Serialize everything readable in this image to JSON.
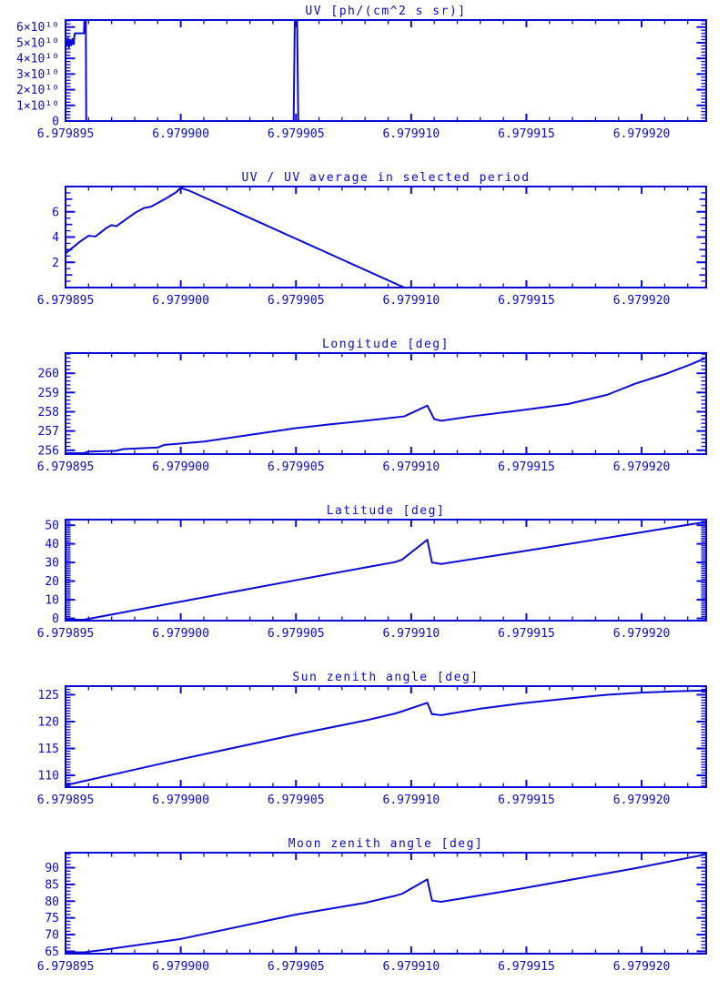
{
  "page": {
    "background": "#ffffff",
    "accent": "#0a0ad8"
  },
  "chart_data": [
    {
      "type": "line",
      "title": "UV [ph/(cm^2 s sr)]",
      "xlim": [
        6.979895,
        6.9799228
      ],
      "ylim": [
        0,
        64500000000.0
      ],
      "x_ticks": [
        {
          "v": 6.979895,
          "label": "6.979895"
        },
        {
          "v": 6.9799,
          "label": "6.979900"
        },
        {
          "v": 6.979905,
          "label": "6.979905"
        },
        {
          "v": 6.97991,
          "label": "6.979910"
        },
        {
          "v": 6.979915,
          "label": "6.979915"
        },
        {
          "v": 6.97992,
          "label": "6.979920"
        }
      ],
      "x_minor_step": 1e-06,
      "y_ticks": [
        {
          "v": 0,
          "label": "0"
        },
        {
          "v": 10000000000.0,
          "label": "1×10¹⁰"
        },
        {
          "v": 20000000000.0,
          "label": "2×10¹⁰"
        },
        {
          "v": 30000000000.0,
          "label": "3×10¹⁰"
        },
        {
          "v": 40000000000.0,
          "label": "4×10¹⁰"
        },
        {
          "v": 50000000000.0,
          "label": "5×10¹⁰"
        },
        {
          "v": 60000000000.0,
          "label": "6×10¹⁰"
        }
      ],
      "y_mid_ticks": [],
      "y_minor_step": 2000000000.0,
      "points": [
        [
          6.979895,
          50000000000.0
        ],
        [
          6.97989505,
          48000000000.0
        ],
        [
          6.9798951,
          53000000000.0
        ],
        [
          6.97989515,
          47000000000.0
        ],
        [
          6.9798952,
          52000000000.0
        ],
        [
          6.97989525,
          48500000000.0
        ],
        [
          6.9798953,
          52500000000.0
        ],
        [
          6.97989535,
          49000000000.0
        ],
        [
          6.9798954,
          56000000000.0
        ],
        [
          6.9798958,
          56000000000.0
        ],
        [
          6.97989582,
          64500000000.0
        ],
        [
          6.97989588,
          64500000000.0
        ],
        [
          6.9798959,
          0
        ],
        [
          6.9799049,
          0
        ],
        [
          6.97990495,
          64500000000.0
        ],
        [
          6.97990505,
          64500000000.0
        ],
        [
          6.9799051,
          0
        ],
        [
          6.9799228,
          0
        ]
      ]
    },
    {
      "type": "line",
      "title": "UV / UV average in selected period",
      "xlim": [
        6.979895,
        6.9799228
      ],
      "ylim": [
        0,
        8
      ],
      "x_ticks": [
        {
          "v": 6.979895,
          "label": "6.979895"
        },
        {
          "v": 6.9799,
          "label": "6.979900"
        },
        {
          "v": 6.979905,
          "label": "6.979905"
        },
        {
          "v": 6.97991,
          "label": "6.979910"
        },
        {
          "v": 6.979915,
          "label": "6.979915"
        },
        {
          "v": 6.97992,
          "label": "6.979920"
        }
      ],
      "x_minor_step": 1e-06,
      "y_ticks": [
        {
          "v": 2,
          "label": "2"
        },
        {
          "v": 4,
          "label": "4"
        },
        {
          "v": 6,
          "label": "6"
        }
      ],
      "y_mid_ticks": [
        1,
        3,
        5,
        7
      ],
      "y_minor_step": 0.5,
      "points": [
        [
          6.979895,
          2.7
        ],
        [
          6.9798956,
          3.6
        ],
        [
          6.979896,
          4.1
        ],
        [
          6.9798963,
          4.05
        ],
        [
          6.9798968,
          4.75
        ],
        [
          6.979897,
          4.95
        ],
        [
          6.9798972,
          4.85
        ],
        [
          6.979898,
          5.9
        ],
        [
          6.9798984,
          6.3
        ],
        [
          6.9798987,
          6.4
        ],
        [
          6.9798994,
          7.1
        ],
        [
          6.9798998,
          7.55
        ],
        [
          6.9799,
          7.9
        ],
        [
          6.9799004,
          7.65
        ],
        [
          6.9799097,
          0
        ],
        [
          6.9799228,
          0
        ]
      ]
    },
    {
      "type": "line",
      "title": "Longitude [deg]",
      "xlim": [
        6.979895,
        6.9799228
      ],
      "ylim": [
        255.8,
        261.05
      ],
      "x_ticks": [
        {
          "v": 6.979895,
          "label": "6.979895"
        },
        {
          "v": 6.9799,
          "label": "6.979900"
        },
        {
          "v": 6.979905,
          "label": "6.979905"
        },
        {
          "v": 6.97991,
          "label": "6.979910"
        },
        {
          "v": 6.979915,
          "label": "6.979915"
        },
        {
          "v": 6.97992,
          "label": "6.979920"
        }
      ],
      "x_minor_step": 1e-06,
      "y_ticks": [
        {
          "v": 256,
          "label": "256"
        },
        {
          "v": 257,
          "label": "257"
        },
        {
          "v": 258,
          "label": "258"
        },
        {
          "v": 259,
          "label": "259"
        },
        {
          "v": 260,
          "label": "260"
        }
      ],
      "y_mid_ticks": [],
      "y_minor_step": 0.2,
      "points": [
        [
          6.979895,
          255.85
        ],
        [
          6.9798958,
          255.85
        ],
        [
          6.979896,
          255.93
        ],
        [
          6.9798972,
          255.97
        ],
        [
          6.9798975,
          256.06
        ],
        [
          6.979899,
          256.14
        ],
        [
          6.9798993,
          256.28
        ],
        [
          6.979901,
          256.45
        ],
        [
          6.979903,
          256.8
        ],
        [
          6.979905,
          257.15
        ],
        [
          6.9799065,
          257.35
        ],
        [
          6.979908,
          257.53
        ],
        [
          6.9799097,
          257.76
        ],
        [
          6.9799107,
          258.32
        ],
        [
          6.979911,
          257.62
        ],
        [
          6.9799113,
          257.53
        ],
        [
          6.9799126,
          257.76
        ],
        [
          6.9799148,
          258.08
        ],
        [
          6.9799168,
          258.4
        ],
        [
          6.9799185,
          258.88
        ],
        [
          6.9799197,
          259.45
        ],
        [
          6.979921,
          259.95
        ],
        [
          6.979922,
          260.4
        ],
        [
          6.9799228,
          260.8
        ]
      ]
    },
    {
      "type": "line",
      "title": "Latitude [deg]",
      "xlim": [
        6.979895,
        6.9799228
      ],
      "ylim": [
        -1.2,
        53
      ],
      "x_ticks": [
        {
          "v": 6.979895,
          "label": "6.979895"
        },
        {
          "v": 6.9799,
          "label": "6.979900"
        },
        {
          "v": 6.979905,
          "label": "6.979905"
        },
        {
          "v": 6.97991,
          "label": "6.979910"
        },
        {
          "v": 6.979915,
          "label": "6.979915"
        },
        {
          "v": 6.97992,
          "label": "6.979920"
        }
      ],
      "x_minor_step": 1e-06,
      "y_ticks": [
        {
          "v": 0,
          "label": "0"
        },
        {
          "v": 10,
          "label": "10"
        },
        {
          "v": 20,
          "label": "20"
        },
        {
          "v": 30,
          "label": "30"
        },
        {
          "v": 40,
          "label": "40"
        },
        {
          "v": 50,
          "label": "50"
        }
      ],
      "y_mid_ticks": [],
      "y_minor_step": 1,
      "points": [
        [
          6.979895,
          -0.7
        ],
        [
          6.9798958,
          -0.7
        ],
        [
          6.9799,
          9.0
        ],
        [
          6.979905,
          20.5
        ],
        [
          6.979908,
          27.3
        ],
        [
          6.9799093,
          30.2
        ],
        [
          6.9799096,
          31.5
        ],
        [
          6.9799107,
          42.2
        ],
        [
          6.9799109,
          30.0
        ],
        [
          6.9799113,
          29.2
        ],
        [
          6.9799148,
          35.9
        ],
        [
          6.9799197,
          45.6
        ],
        [
          6.9799228,
          51.8
        ]
      ]
    },
    {
      "type": "line",
      "title": "Sun zenith angle [deg]",
      "xlim": [
        6.979895,
        6.9799228
      ],
      "ylim": [
        107.8,
        126.6
      ],
      "x_ticks": [
        {
          "v": 6.979895,
          "label": "6.979895"
        },
        {
          "v": 6.9799,
          "label": "6.979900"
        },
        {
          "v": 6.979905,
          "label": "6.979905"
        },
        {
          "v": 6.97991,
          "label": "6.979910"
        },
        {
          "v": 6.979915,
          "label": "6.979915"
        },
        {
          "v": 6.97992,
          "label": "6.979920"
        }
      ],
      "x_minor_step": 1e-06,
      "y_ticks": [
        {
          "v": 110,
          "label": "110"
        },
        {
          "v": 115,
          "label": "115"
        },
        {
          "v": 120,
          "label": "120"
        },
        {
          "v": 125,
          "label": "125"
        }
      ],
      "y_mid_ticks": [],
      "y_minor_step": 0.5,
      "points": [
        [
          6.979895,
          108.15
        ],
        [
          6.9799,
          113.0
        ],
        [
          6.979905,
          117.6
        ],
        [
          6.979908,
          120.2
        ],
        [
          6.9799093,
          121.5
        ],
        [
          6.9799096,
          121.9
        ],
        [
          6.9799107,
          123.5
        ],
        [
          6.9799109,
          121.4
        ],
        [
          6.9799113,
          121.2
        ],
        [
          6.979913,
          122.4
        ],
        [
          6.9799148,
          123.4
        ],
        [
          6.9799168,
          124.3
        ],
        [
          6.9799185,
          125.0
        ],
        [
          6.97992,
          125.4
        ],
        [
          6.9799215,
          125.65
        ],
        [
          6.9799228,
          125.78
        ]
      ]
    },
    {
      "type": "line",
      "title": "Moon zenith angle [deg]",
      "xlim": [
        6.979895,
        6.9799228
      ],
      "ylim": [
        64.3,
        94.5
      ],
      "x_ticks": [
        {
          "v": 6.979895,
          "label": "6.979895"
        },
        {
          "v": 6.9799,
          "label": "6.979900"
        },
        {
          "v": 6.979905,
          "label": "6.979905"
        },
        {
          "v": 6.97991,
          "label": "6.979910"
        },
        {
          "v": 6.979915,
          "label": "6.979915"
        },
        {
          "v": 6.97992,
          "label": "6.979920"
        }
      ],
      "x_minor_step": 1e-06,
      "y_ticks": [
        {
          "v": 65,
          "label": "65"
        },
        {
          "v": 70,
          "label": "70"
        },
        {
          "v": 75,
          "label": "75"
        },
        {
          "v": 80,
          "label": "80"
        },
        {
          "v": 85,
          "label": "85"
        },
        {
          "v": 90,
          "label": "90"
        }
      ],
      "y_mid_ticks": [],
      "y_minor_step": 1,
      "points": [
        [
          6.979895,
          64.9
        ],
        [
          6.9798953,
          64.7
        ],
        [
          6.9798958,
          64.7
        ],
        [
          6.9798966,
          65.4
        ],
        [
          6.9799,
          68.7
        ],
        [
          6.979905,
          76.0
        ],
        [
          6.979908,
          79.5
        ],
        [
          6.9799093,
          81.6
        ],
        [
          6.9799096,
          82.2
        ],
        [
          6.9799107,
          86.5
        ],
        [
          6.9799109,
          80.2
        ],
        [
          6.9799113,
          79.8
        ],
        [
          6.9799148,
          83.8
        ],
        [
          6.9799197,
          89.8
        ],
        [
          6.9799228,
          94.0
        ]
      ]
    }
  ]
}
